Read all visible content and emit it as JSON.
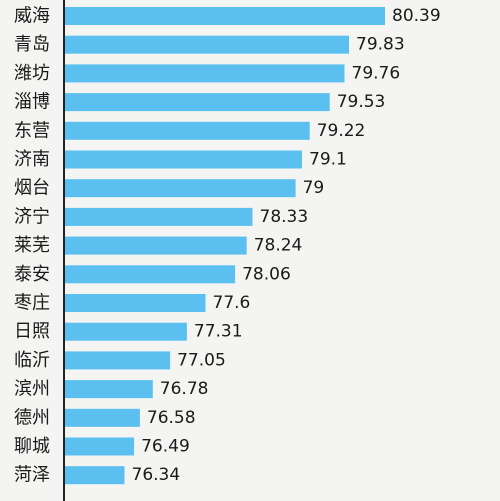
{
  "chart_data": {
    "type": "bar",
    "orientation": "horizontal",
    "categories": [
      "威海",
      "青岛",
      "潍坊",
      "淄博",
      "东营",
      "济南",
      "烟台",
      "济宁",
      "莱芜",
      "泰安",
      "枣庄",
      "日照",
      "临沂",
      "滨州",
      "德州",
      "聊城",
      "菏泽"
    ],
    "values": [
      80.39,
      79.83,
      79.76,
      79.53,
      79.22,
      79.1,
      79,
      78.33,
      78.24,
      78.06,
      77.6,
      77.31,
      77.05,
      76.78,
      76.58,
      76.49,
      76.34
    ],
    "value_labels": [
      "80.39",
      "79.83",
      "79.76",
      "79.53",
      "79.22",
      "79.1",
      "79",
      "78.33",
      "78.24",
      "78.06",
      "77.6",
      "77.31",
      "77.05",
      "76.78",
      "76.58",
      "76.49",
      "76.34"
    ],
    "xlim": [
      75.4,
      80.39
    ],
    "grid": false,
    "colors": {
      "bar": "#5bc0f0",
      "axis": "#222222",
      "background": "#f4f4f2",
      "text": "#1a1a1a"
    }
  }
}
